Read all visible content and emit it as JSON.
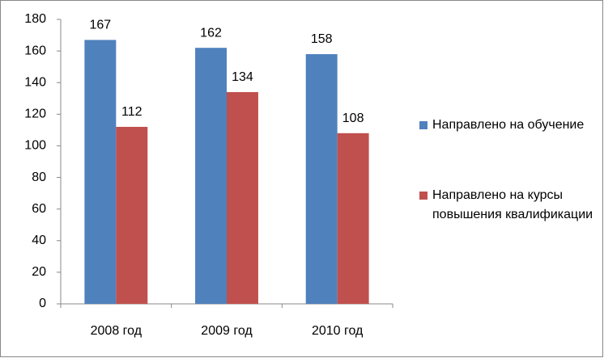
{
  "chart_data": {
    "type": "bar",
    "categories": [
      "2008 год",
      "2009 год",
      "2010 год"
    ],
    "series": [
      {
        "name": "Направлено на обучение",
        "color": "#4f81bd",
        "values": [
          167,
          162,
          158
        ]
      },
      {
        "name": "Направлено на курсы повышения квалификации",
        "color": "#c0504d",
        "values": [
          112,
          134,
          108
        ]
      }
    ],
    "ylim": [
      0,
      180
    ],
    "yticks": [
      0,
      20,
      40,
      60,
      80,
      100,
      120,
      140,
      160,
      180
    ],
    "grid": false,
    "legend": "right"
  }
}
